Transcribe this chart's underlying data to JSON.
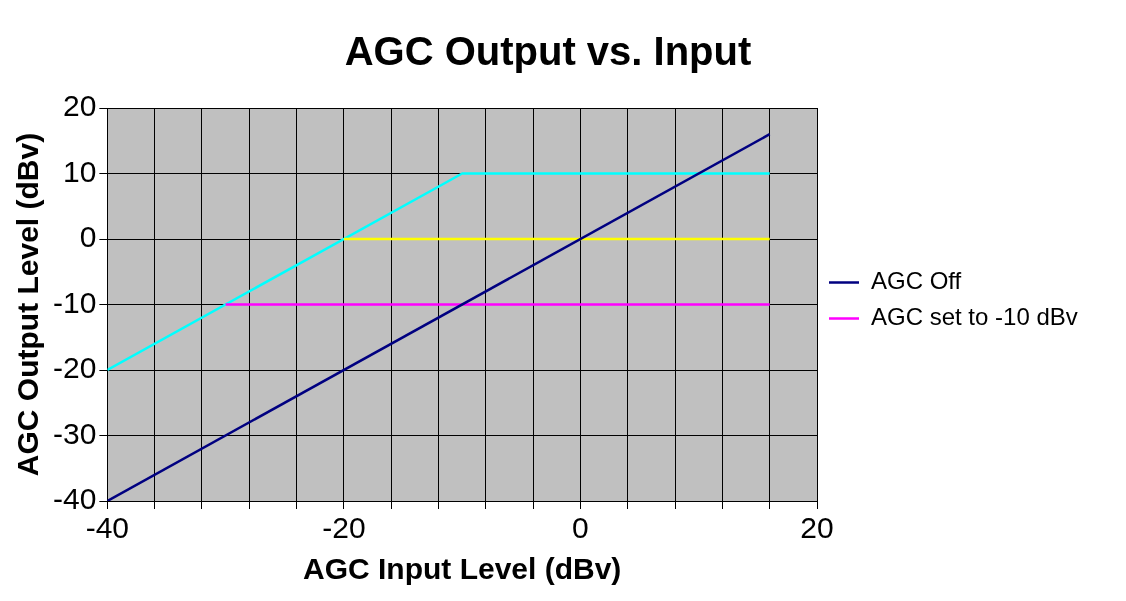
{
  "chart_data": {
    "type": "line",
    "title": "AGC Output vs. Input",
    "xlabel": "AGC Input Level (dBv)",
    "ylabel": "AGC Output Level (dBv)",
    "series": [
      {
        "name": "AGC Off",
        "color": "#000080",
        "x": [
          -40,
          16
        ],
        "values": [
          -40,
          16
        ]
      },
      {
        "name": "AGC set to -10 dBv",
        "color": "#ff00ff",
        "x": [
          -30,
          16
        ],
        "values": [
          -10,
          -10
        ]
      },
      {
        "color": "#ffff00",
        "x": [
          -20,
          16
        ],
        "values": [
          0,
          0
        ]
      },
      {
        "color": "#00ffff",
        "x": [
          -40,
          -10,
          16
        ],
        "values": [
          -20,
          10,
          10
        ]
      }
    ],
    "xlim": [
      -40,
      20
    ],
    "xticks": [
      -40,
      {
        "value": -36,
        "label": null
      },
      {
        "value": -32,
        "label": null
      },
      {
        "value": -28,
        "label": null
      },
      {
        "value": -24,
        "label": null
      },
      -20,
      {
        "value": -16,
        "label": null
      },
      {
        "value": -12,
        "label": null
      },
      {
        "value": -8,
        "label": null
      },
      {
        "value": -4,
        "label": null
      },
      0,
      {
        "value": 4,
        "label": null
      },
      {
        "value": 8,
        "label": null
      },
      {
        "value": 12,
        "label": null
      },
      {
        "value": 16,
        "label": null
      },
      20
    ],
    "ylim": [
      -40,
      20
    ],
    "yticks": [
      -40,
      -30,
      -20,
      -10,
      0,
      10,
      20
    ],
    "grid": true,
    "legend": "right",
    "marker": "none",
    "line_style": "solid"
  }
}
